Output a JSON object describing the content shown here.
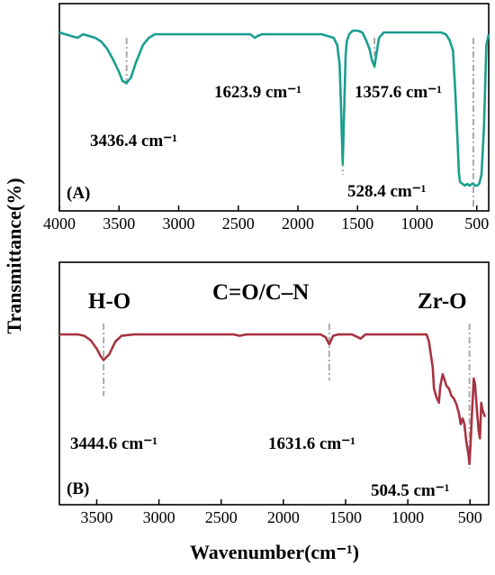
{
  "figure": {
    "ylabel": "Transmittance(%)",
    "xlabel": "Wavenumber(cm⁻¹)"
  },
  "chart_data": [
    {
      "type": "line",
      "panel_label": "(A)",
      "xlim": [
        4000,
        400
      ],
      "xticks": [
        4000,
        3500,
        3000,
        2500,
        2000,
        1500,
        1000,
        500
      ],
      "tick_labels": [
        "4000",
        "3500",
        "3000",
        "2500",
        "2000",
        "1500",
        "1000",
        "500"
      ],
      "yticks_shown": false,
      "ylim": [
        0,
        100
      ],
      "color": "#1a9e8f",
      "series": [
        {
          "x": [
            4000,
            3950,
            3900,
            3850,
            3800,
            3750,
            3700,
            3650,
            3600,
            3550,
            3500,
            3470,
            3436.4,
            3400,
            3360,
            3300,
            3250,
            3200,
            3100,
            3000,
            2900,
            2800,
            2700,
            2600,
            2500,
            2400,
            2360,
            2340,
            2300,
            2200,
            2100,
            2000,
            1900,
            1800,
            1750,
            1700,
            1670,
            1650,
            1640,
            1623.9,
            1610,
            1600,
            1590,
            1570,
            1540,
            1500,
            1460,
            1430,
            1400,
            1380,
            1357.6,
            1340,
            1320,
            1280,
            1200,
            1100,
            1000,
            900,
            800,
            760,
            730,
            700,
            680,
            660,
            650,
            640,
            620,
            600,
            580,
            560,
            540,
            528.4,
            515,
            500,
            480,
            460,
            440,
            420,
            400
          ],
          "y": [
            93,
            92,
            91,
            90,
            92,
            91,
            90,
            88,
            84,
            78,
            71,
            66,
            65,
            68,
            76,
            86,
            90,
            92,
            92,
            92,
            92,
            92,
            92,
            92,
            92,
            92,
            90,
            91,
            92,
            92,
            92,
            92,
            92,
            92,
            91,
            90,
            86,
            75,
            55,
            20,
            55,
            80,
            88,
            92,
            94,
            94,
            93,
            89,
            84,
            78,
            74,
            82,
            90,
            93,
            93,
            93,
            93,
            93,
            93,
            92,
            89,
            83,
            60,
            30,
            15,
            10,
            9,
            8,
            9,
            8,
            9,
            9,
            8,
            8,
            9,
            14,
            40,
            86,
            92
          ]
        }
      ],
      "annotations": [
        {
          "x": 3436.4,
          "label": "3436.4 cm⁻¹"
        },
        {
          "x": 1623.9,
          "label": "1623.9 cm⁻¹"
        },
        {
          "x": 1357.6,
          "label": "1357.6 cm⁻¹"
        },
        {
          "x": 528.4,
          "label": "528.4 cm⁻¹"
        }
      ]
    },
    {
      "type": "line",
      "panel_label": "(B)",
      "xlim": [
        3800,
        350
      ],
      "xticks": [
        3500,
        3000,
        2500,
        2000,
        1500,
        1000,
        500
      ],
      "tick_labels": [
        "3500",
        "3000",
        "2500",
        "2000",
        "1500",
        "1000",
        "500"
      ],
      "yticks_shown": false,
      "ylim": [
        0,
        100
      ],
      "color": "#a83340",
      "series": [
        {
          "x": [
            3800,
            3750,
            3700,
            3650,
            3600,
            3550,
            3500,
            3470,
            3444.6,
            3400,
            3350,
            3300,
            3200,
            3000,
            2800,
            2600,
            2400,
            2350,
            2300,
            2200,
            2000,
            1800,
            1700,
            1660,
            1631.6,
            1600,
            1560,
            1500,
            1450,
            1400,
            1380,
            1340,
            1200,
            1000,
            900,
            850,
            830,
            800,
            790,
            770,
            750,
            740,
            720,
            700,
            690,
            670,
            650,
            630,
            610,
            590,
            575,
            560,
            545,
            530,
            515,
            504.5,
            495,
            480,
            470,
            460,
            445,
            430,
            420,
            410,
            400,
            380
          ],
          "y": [
            93,
            93,
            93,
            93,
            92,
            89,
            83,
            78,
            75,
            79,
            88,
            92,
            93,
            93,
            93,
            93,
            93,
            92,
            93,
            93,
            93,
            93,
            93,
            91,
            86,
            92,
            93,
            93,
            93,
            91,
            90,
            93,
            93,
            93,
            93,
            93,
            88,
            70,
            55,
            49,
            45,
            56,
            65,
            60,
            57,
            55,
            50,
            48,
            44,
            38,
            30,
            34,
            30,
            18,
            10,
            2,
            18,
            45,
            62,
            58,
            40,
            25,
            20,
            45,
            40,
            35
          ]
        }
      ],
      "annotations": [
        {
          "x": 3444.6,
          "label": "3444.6 cm⁻¹",
          "group": "H-O"
        },
        {
          "x": 1631.6,
          "label": "1631.6 cm⁻¹",
          "group": "C=O/C–N"
        },
        {
          "x": 504.5,
          "label": "504.5 cm⁻¹",
          "group": "Zr-O"
        }
      ]
    }
  ]
}
